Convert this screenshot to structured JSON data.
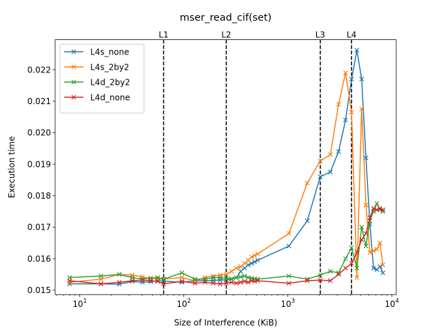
{
  "chart_data": {
    "type": "line",
    "title": "mser_read_cif(set)",
    "xlabel": "Size of Interference (KiB)",
    "ylabel": "Execution time",
    "xscale": "log",
    "xlim": [
      5.8,
      11000
    ],
    "ylim": [
      0.01486,
      0.02295
    ],
    "yticks": [
      0.015,
      0.016,
      0.017,
      0.018,
      0.019,
      0.02,
      0.021,
      0.022
    ],
    "ytick_labels": [
      "0.015",
      "0.016",
      "0.017",
      "0.018",
      "0.019",
      "0.020",
      "0.021",
      "0.022"
    ],
    "xticks": [
      {
        "value": 10,
        "base": "10",
        "exp": "1"
      },
      {
        "value": 100,
        "base": "10",
        "exp": "2"
      },
      {
        "value": 1000,
        "base": "10",
        "exp": "3"
      },
      {
        "value": 10000,
        "base": "10",
        "exp": "4"
      }
    ],
    "grid": false,
    "legend_position": "top-left",
    "vlines": [
      {
        "label": "L1",
        "x": 64
      },
      {
        "label": "L2",
        "x": 256
      },
      {
        "label": "L3",
        "x": 2048
      },
      {
        "label": "L4",
        "x": 4096
      }
    ],
    "series": [
      {
        "name": "L4s_none",
        "color": "#1f77b4",
        "x": [
          8,
          16,
          24,
          32,
          40,
          48,
          56,
          64,
          96,
          128,
          160,
          192,
          224,
          256,
          288,
          320,
          352,
          384,
          416,
          448,
          480,
          512,
          1024,
          1536,
          2048,
          2560,
          3072,
          3584,
          4096,
          4608,
          5120,
          5632,
          6144,
          6656,
          7168,
          7680,
          8192
        ],
        "y": [
          0.0152,
          0.0152,
          0.01519,
          0.01528,
          0.01525,
          0.01527,
          0.0153,
          0.01529,
          0.01525,
          0.0153,
          0.0153,
          0.01531,
          0.01532,
          0.01533,
          0.01535,
          0.0154,
          0.0156,
          0.0157,
          0.0158,
          0.01585,
          0.0159,
          0.01595,
          0.0164,
          0.0172,
          0.0186,
          0.01875,
          0.0194,
          0.0204,
          0.0217,
          0.02262,
          0.0217,
          0.0192,
          0.0171,
          0.0157,
          0.01565,
          0.01575,
          0.01555
        ]
      },
      {
        "name": "L4s_2by2",
        "color": "#ff7f0e",
        "x": [
          8,
          16,
          24,
          32,
          40,
          48,
          56,
          64,
          96,
          128,
          160,
          192,
          224,
          256,
          288,
          320,
          352,
          384,
          416,
          448,
          480,
          512,
          1024,
          1536,
          2048,
          2560,
          3072,
          3584,
          4096,
          4608,
          5120,
          5632,
          6144,
          6656,
          7168,
          7680,
          8192
        ],
        "y": [
          0.01525,
          0.01535,
          0.0155,
          0.01548,
          0.01542,
          0.01538,
          0.01536,
          0.01535,
          0.0154,
          0.0153,
          0.0154,
          0.01545,
          0.01548,
          0.0155,
          0.0156,
          0.0157,
          0.01575,
          0.01585,
          0.01595,
          0.01605,
          0.0161,
          0.01615,
          0.0168,
          0.0184,
          0.0191,
          0.0193,
          0.0209,
          0.0219,
          0.02065,
          0.0154,
          0.02075,
          0.0177,
          0.0162,
          0.01625,
          0.0163,
          0.0165,
          0.0158
        ]
      },
      {
        "name": "L4d_2by2",
        "color": "#2ca02c",
        "x": [
          8,
          16,
          24,
          32,
          40,
          48,
          56,
          64,
          96,
          128,
          160,
          192,
          224,
          256,
          288,
          320,
          352,
          384,
          416,
          448,
          480,
          512,
          1024,
          1536,
          2048,
          2560,
          3072,
          3584,
          4096,
          4608,
          5120,
          5632,
          6144,
          6656,
          7168,
          7680,
          8192
        ],
        "y": [
          0.0154,
          0.01545,
          0.0155,
          0.0154,
          0.01535,
          0.01538,
          0.0154,
          0.01535,
          0.01555,
          0.01535,
          0.01535,
          0.0154,
          0.0154,
          0.01538,
          0.01536,
          0.0154,
          0.01542,
          0.01545,
          0.0154,
          0.01538,
          0.01536,
          0.01535,
          0.01545,
          0.01535,
          0.01548,
          0.0156,
          0.01555,
          0.016,
          0.01635,
          0.0157,
          0.017,
          0.0164,
          0.0172,
          0.0175,
          0.01775,
          0.01755,
          0.0175
        ]
      },
      {
        "name": "L4d_none",
        "color": "#d62728",
        "x": [
          8,
          16,
          24,
          32,
          40,
          48,
          56,
          64,
          96,
          128,
          160,
          192,
          224,
          256,
          288,
          320,
          352,
          384,
          416,
          448,
          480,
          512,
          1024,
          1536,
          2048,
          2560,
          3072,
          3584,
          4096,
          4608,
          5120,
          5632,
          6144,
          6656,
          7168,
          7680,
          8192
        ],
        "y": [
          0.0153,
          0.0152,
          0.01525,
          0.0153,
          0.01532,
          0.0153,
          0.01528,
          0.0152,
          0.01528,
          0.01522,
          0.01525,
          0.01522,
          0.0152,
          0.01522,
          0.01525,
          0.01522,
          0.01525,
          0.01528,
          0.01525,
          0.0153,
          0.01528,
          0.0153,
          0.01522,
          0.0153,
          0.01532,
          0.0153,
          0.0155,
          0.0157,
          0.01585,
          0.0162,
          0.0166,
          0.0168,
          0.0173,
          0.0176,
          0.01755,
          0.0176,
          0.01755
        ]
      }
    ]
  }
}
